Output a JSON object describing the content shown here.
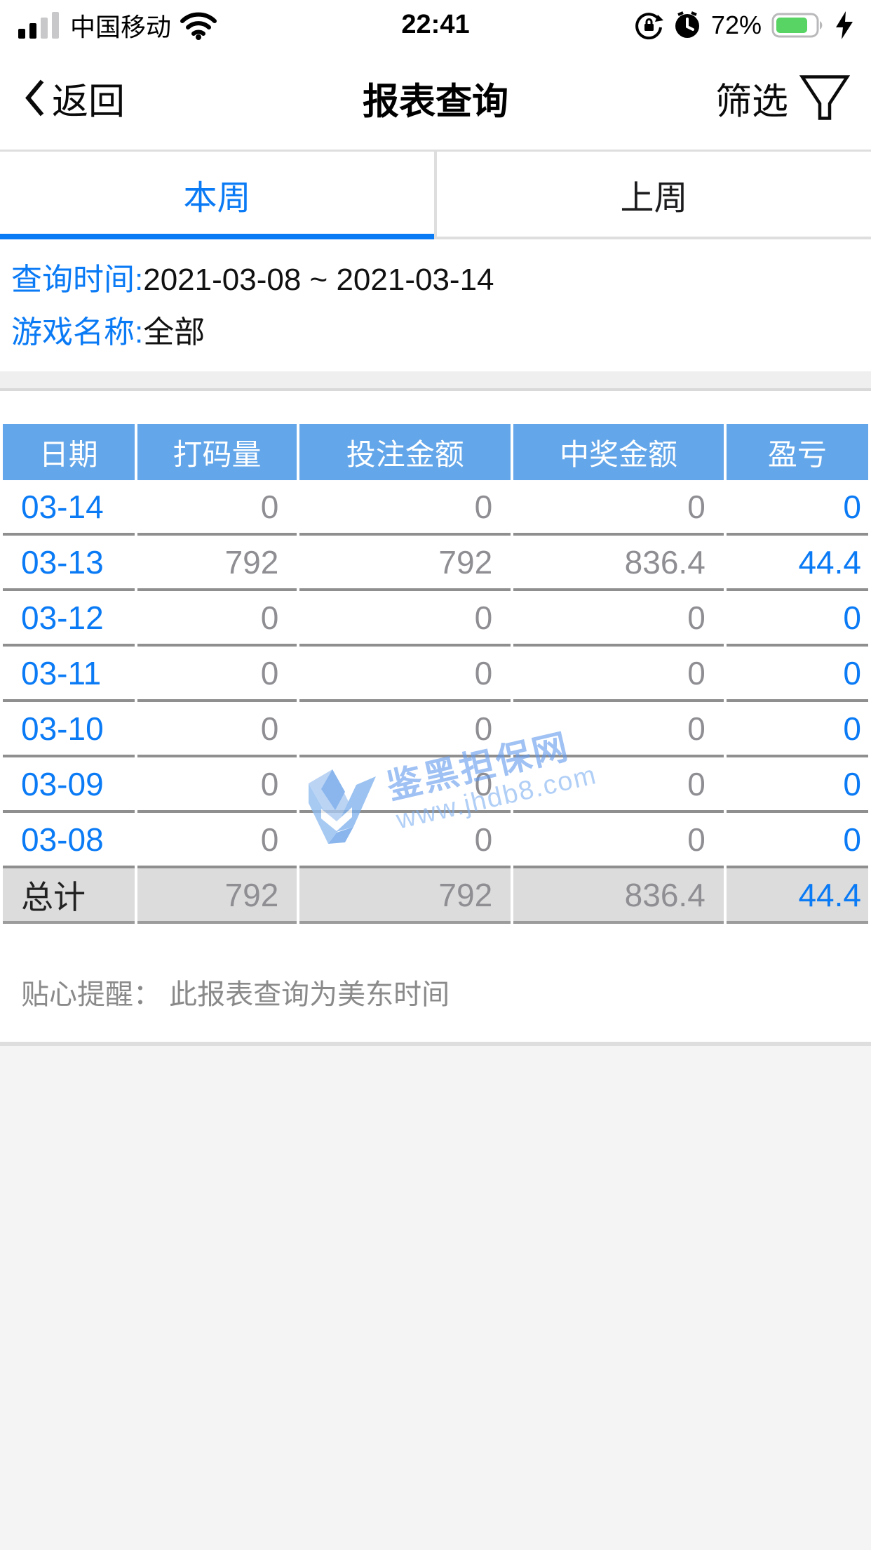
{
  "status_bar": {
    "carrier": "中国移动",
    "time": "22:41",
    "battery_percent": "72%"
  },
  "nav": {
    "back_label": "返回",
    "title": "报表查询",
    "filter_label": "筛选"
  },
  "tabs": [
    {
      "label": "本周",
      "active": true
    },
    {
      "label": "上周",
      "active": false
    }
  ],
  "query": {
    "time_label": "查询时间:",
    "time_value": "2021-03-08 ~ 2021-03-14",
    "game_label": "游戏名称:",
    "game_value": "全部"
  },
  "table": {
    "headers": [
      "日期",
      "打码量",
      "投注金额",
      "中奖金额",
      "盈亏"
    ],
    "rows": [
      [
        "03-14",
        "0",
        "0",
        "0",
        "0"
      ],
      [
        "03-13",
        "792",
        "792",
        "836.4",
        "44.4"
      ],
      [
        "03-12",
        "0",
        "0",
        "0",
        "0"
      ],
      [
        "03-11",
        "0",
        "0",
        "0",
        "0"
      ],
      [
        "03-10",
        "0",
        "0",
        "0",
        "0"
      ],
      [
        "03-09",
        "0",
        "0",
        "0",
        "0"
      ],
      [
        "03-08",
        "0",
        "0",
        "0",
        "0"
      ]
    ],
    "total": {
      "label": "总计",
      "values": [
        "792",
        "792",
        "836.4",
        "44.4"
      ]
    }
  },
  "footer_note": "贴心提醒： 此报表查询为美东时间",
  "watermark": {
    "title": "鉴黑担保网",
    "url": "www.jhdb8.com"
  },
  "colors": {
    "accent": "#0a7af5",
    "header_bg": "#63a6e9",
    "separator": "#8f8f8f",
    "total_bg": "#dcdcdc",
    "value_text": "#8e8e93",
    "battery_green": "#57d463"
  }
}
